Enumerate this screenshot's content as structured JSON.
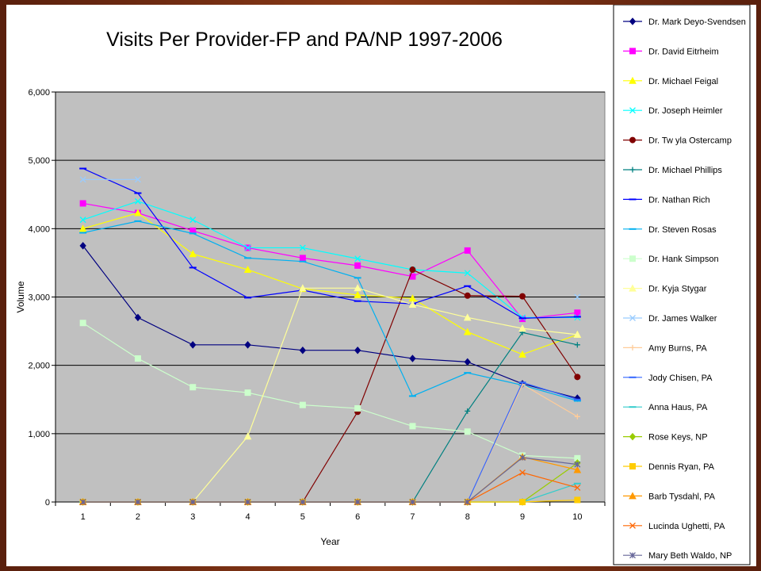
{
  "chart_data": {
    "type": "line",
    "title": "Visits Per Provider-FP and PA/NP 1997-2006",
    "xlabel": "Year",
    "ylabel": "Volume",
    "x": [
      1,
      2,
      3,
      4,
      5,
      6,
      7,
      8,
      9,
      10
    ],
    "ylim": [
      0,
      6000
    ],
    "yticks": [
      "0",
      "1,000",
      "2,000",
      "3,000",
      "4,000",
      "5,000",
      "6,000"
    ],
    "grid": true,
    "plot_background": "#c0c0c0",
    "legend_position": "right",
    "series": [
      {
        "name": "Dr. Mark Deyo-Svendsen",
        "color": "#000080",
        "marker": "diamond",
        "values": [
          3750,
          2700,
          2300,
          2300,
          2220,
          2220,
          2100,
          2050,
          1730,
          1520
        ]
      },
      {
        "name": "Dr. David Eitrheim",
        "color": "#ff00ff",
        "marker": "square",
        "values": [
          4370,
          4230,
          3970,
          3720,
          3570,
          3460,
          3300,
          3680,
          2680,
          2770
        ]
      },
      {
        "name": "Dr. Michael Feigal",
        "color": "#ffff00",
        "marker": "triangle",
        "values": [
          4000,
          4230,
          3630,
          3400,
          3120,
          3030,
          2980,
          2490,
          2160,
          2450
        ]
      },
      {
        "name": "Dr. Joseph Heimler",
        "color": "#00ffff",
        "marker": "x",
        "values": [
          4130,
          4400,
          4130,
          3720,
          3720,
          3560,
          3400,
          3350,
          2700,
          2700
        ]
      },
      {
        "name": "Dr. Tw yla Ostercamp",
        "color": "#800000",
        "marker": "circle",
        "values": [
          0,
          0,
          0,
          0,
          0,
          1320,
          3400,
          3020,
          3010,
          1830
        ]
      },
      {
        "name": "Dr. Michael Phillips",
        "color": "#008080",
        "marker": "plus",
        "values": [
          0,
          0,
          0,
          0,
          0,
          0,
          0,
          1330,
          2480,
          2300
        ]
      },
      {
        "name": "Dr. Nathan Rich",
        "color": "#0000ff",
        "marker": "dash",
        "values": [
          4880,
          4520,
          3430,
          2990,
          3100,
          2940,
          2900,
          3160,
          2690,
          2710
        ]
      },
      {
        "name": "Dr. Steven Rosas",
        "color": "#00b0f0",
        "marker": "dash",
        "values": [
          3940,
          4110,
          3930,
          3570,
          3520,
          3280,
          1550,
          1890,
          1710,
          1480
        ]
      },
      {
        "name": "Dr. Hank Simpson",
        "color": "#ccffcc",
        "marker": "square",
        "values": [
          2620,
          2100,
          1680,
          1600,
          1420,
          1370,
          1110,
          1030,
          680,
          640
        ]
      },
      {
        "name": "Dr. Kyja Stygar",
        "color": "#ffff99",
        "marker": "triangle",
        "values": [
          0,
          0,
          0,
          960,
          3130,
          3130,
          2890,
          2700,
          2540,
          2450
        ]
      },
      {
        "name": "Dr. James Walker",
        "color": "#99ccff",
        "marker": "x",
        "values": [
          4720,
          4720,
          null,
          null,
          null,
          null,
          null,
          null,
          null,
          3000
        ]
      },
      {
        "name": "Amy Burns, PA",
        "color": "#ffcc99",
        "marker": "plus",
        "values": [
          0,
          0,
          0,
          0,
          0,
          0,
          0,
          0,
          1720,
          1250
        ]
      },
      {
        "name": "Jody Chisen, PA",
        "color": "#3366ff",
        "marker": "dash",
        "values": [
          0,
          0,
          0,
          0,
          0,
          0,
          0,
          0,
          1750,
          1500
        ]
      },
      {
        "name": "Anna Haus, PA",
        "color": "#33cccc",
        "marker": "dash",
        "values": [
          0,
          0,
          0,
          0,
          0,
          0,
          0,
          0,
          0,
          270
        ]
      },
      {
        "name": "Rose Keys, NP",
        "color": "#99cc00",
        "marker": "diamond",
        "values": [
          0,
          0,
          0,
          0,
          0,
          0,
          0,
          0,
          0,
          570
        ]
      },
      {
        "name": "Dennis Ryan, PA",
        "color": "#ffcc00",
        "marker": "square",
        "values": [
          0,
          0,
          0,
          0,
          0,
          0,
          0,
          0,
          0,
          30
        ]
      },
      {
        "name": "Barb Tysdahl, PA",
        "color": "#ff9900",
        "marker": "triangle",
        "values": [
          0,
          0,
          0,
          0,
          0,
          0,
          0,
          0,
          660,
          470
        ]
      },
      {
        "name": "Lucinda Ughetti, PA",
        "color": "#ff6600",
        "marker": "x",
        "values": [
          0,
          0,
          0,
          0,
          0,
          0,
          0,
          0,
          430,
          210
        ]
      },
      {
        "name": "Mary Beth Waldo, NP",
        "color": "#666699",
        "marker": "asterisk",
        "values": [
          0,
          0,
          0,
          0,
          0,
          0,
          0,
          0,
          650,
          550
        ]
      }
    ]
  }
}
